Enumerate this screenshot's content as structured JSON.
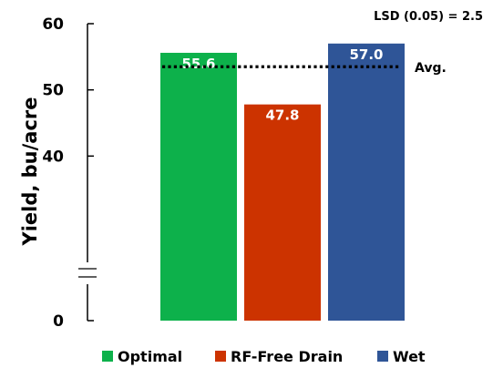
{
  "chart_data": {
    "type": "bar",
    "ylabel": "Yield, bu/acre",
    "annotation": "LSD (0.05) = 2.5",
    "y_axis_break": true,
    "y_ticks": [
      {
        "label": "60",
        "value": 60
      },
      {
        "label": "50",
        "value": 50
      },
      {
        "label": "40",
        "value": 40
      },
      {
        "label": "0",
        "value": 0
      }
    ],
    "ylim": [
      30,
      60
    ],
    "categories": [
      "Optimal",
      "RF-Free Drain",
      "Wet"
    ],
    "values": [
      55.6,
      47.8,
      57.0
    ],
    "value_labels": [
      "55.6",
      "47.8",
      "57.0"
    ],
    "colors": [
      "#0db14b",
      "#cc3300",
      "#2f5597"
    ],
    "reference_line": {
      "value": 53.5,
      "label": "Avg.",
      "style": "dotted",
      "color": "#000000"
    },
    "legend": {
      "placement": "bottom",
      "entries": [
        {
          "label": "Optimal",
          "color": "#0db14b"
        },
        {
          "label": "RF-Free Drain",
          "color": "#cc3300"
        },
        {
          "label": "Wet",
          "color": "#2f5597"
        }
      ]
    },
    "grid": false
  }
}
